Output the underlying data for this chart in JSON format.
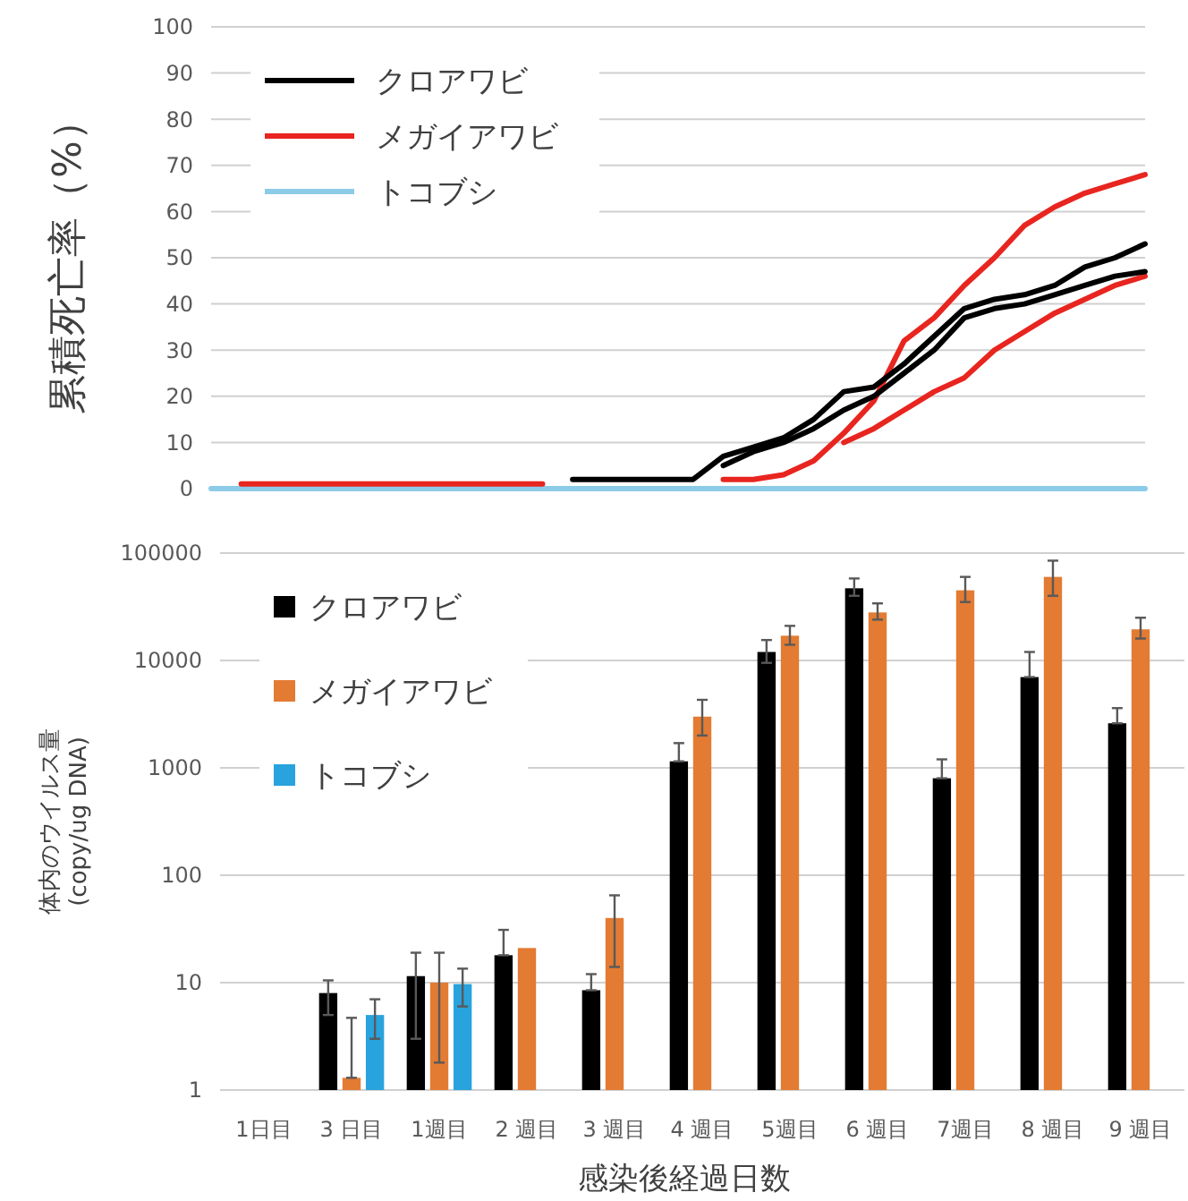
{
  "chart_data": [
    {
      "type": "line",
      "ylabel": "累積死亡率（%）",
      "categories": [
        null,
        null,
        null,
        null,
        null,
        null,
        null,
        null,
        null,
        null,
        null,
        null,
        null,
        null,
        null,
        null,
        null,
        null,
        null,
        null,
        null,
        null,
        null,
        null,
        null,
        null,
        null,
        null,
        null,
        null,
        null,
        null
      ],
      "series": [
        {
          "name": "クロアワビ",
          "color": "#000000",
          "values": [
            null,
            null,
            null,
            null,
            null,
            null,
            null,
            null,
            null,
            null,
            null,
            null,
            2,
            2,
            2,
            2,
            2,
            7,
            9,
            11,
            15,
            21,
            22,
            27,
            33,
            39,
            41,
            42,
            44,
            48,
            50,
            53
          ]
        },
        {
          "color": "#000000",
          "values": [
            null,
            null,
            null,
            null,
            null,
            null,
            null,
            null,
            null,
            null,
            null,
            null,
            null,
            null,
            null,
            null,
            null,
            5,
            8,
            10,
            13,
            17,
            20,
            25,
            30,
            37,
            39,
            40,
            42,
            44,
            46,
            47
          ]
        },
        {
          "name": "メガイアワビ",
          "color": "#e8251f",
          "values": [
            null,
            1,
            1,
            1,
            1,
            1,
            1,
            1,
            1,
            1,
            1,
            1,
            null,
            null,
            null,
            null,
            null,
            2,
            2,
            3,
            6,
            12,
            19,
            32,
            37,
            44,
            50,
            57,
            61,
            64,
            66,
            68
          ]
        },
        {
          "color": "#e8251f",
          "values": [
            null,
            null,
            null,
            null,
            null,
            null,
            null,
            null,
            null,
            null,
            null,
            null,
            null,
            null,
            null,
            null,
            null,
            null,
            null,
            null,
            null,
            10,
            13,
            17,
            21,
            24,
            30,
            34,
            38,
            41,
            44,
            46
          ]
        },
        {
          "name": "トコブシ",
          "color": "#8ccbe8",
          "values": [
            0,
            0,
            0,
            0,
            0,
            0,
            0,
            0,
            0,
            0,
            0,
            0,
            0,
            0,
            0,
            0,
            0,
            0,
            0,
            0,
            0,
            0,
            0,
            0,
            0,
            0,
            0,
            0,
            0,
            0,
            0,
            0
          ]
        }
      ],
      "ylim": [
        0,
        100
      ],
      "yticks": [
        0,
        10,
        20,
        30,
        40,
        50,
        60,
        70,
        80,
        90,
        100
      ],
      "grid": "y",
      "legend": "top left",
      "tick_labels": "y"
    },
    {
      "type": "bar",
      "xlabel": "感染後経過日数",
      "ylabel": "体内のウイルス量\n(copy/ug DNA)",
      "categories": [
        "1日目",
        "3 日目",
        "1週目",
        "2 週目",
        "3 週目",
        "4 週目",
        "5週目",
        "6 週目",
        "7週目",
        "8 週目",
        "9 週目"
      ],
      "series": [
        {
          "name": "クロアワビ",
          "color": "#000000",
          "values": [
            null,
            8,
            11.5,
            18,
            8.5,
            1150,
            12000,
            47000,
            800,
            7000,
            2600
          ],
          "errors": [
            null,
            [
              5,
              10.5
            ],
            [
              3,
              19
            ],
            [
              18,
              31
            ],
            [
              8.5,
              12
            ],
            [
              1150,
              1700
            ],
            [
              9500,
              15500
            ],
            [
              40000,
              58000
            ],
            [
              800,
              1200
            ],
            [
              7000,
              12000
            ],
            [
              2600,
              3600
            ]
          ]
        },
        {
          "name": "メガイアワビ",
          "color": "#e37b33",
          "values": [
            null,
            1.3,
            10,
            21,
            40,
            3000,
            17000,
            28000,
            45000,
            60000,
            19500
          ],
          "errors": [
            null,
            [
              1.3,
              4.7
            ],
            [
              1.8,
              19
            ],
            null,
            [
              14,
              65
            ],
            [
              2000,
              4300
            ],
            [
              14000,
              21000
            ],
            [
              24000,
              34000
            ],
            [
              35000,
              60000
            ],
            [
              40000,
              85000
            ],
            [
              16000,
              25000
            ]
          ]
        },
        {
          "name": "トコブシ",
          "color": "#29a3dd",
          "values": [
            null,
            5,
            9.7,
            null,
            null,
            null,
            null,
            null,
            null,
            null,
            null
          ],
          "errors": [
            null,
            [
              3,
              7
            ],
            [
              6,
              13.5
            ],
            null,
            null,
            null,
            null,
            null,
            null,
            null,
            null
          ]
        }
      ],
      "log": "y",
      "ylim": [
        1,
        100000
      ],
      "yticks": [
        1,
        10,
        100,
        1000,
        10000,
        100000
      ],
      "grid": "y",
      "legend": "top left"
    }
  ]
}
